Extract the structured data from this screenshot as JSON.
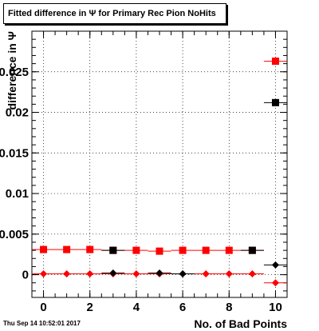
{
  "title": "Fitted difference in Ψ  for Primary Rec Pion NoHits",
  "timestamp": "Thu Sep 14 10:52:01 2017",
  "colors": {
    "red": "#ff0000",
    "black": "#000000"
  },
  "chart_data": {
    "type": "scatter",
    "xlabel": "No. of Bad Points",
    "ylabel": "difference in  Ψ",
    "xlim": [
      -0.5,
      10.5
    ],
    "ylim": [
      -0.0028,
      0.03
    ],
    "x_ticks": [
      "0",
      "2",
      "4",
      "6",
      "8",
      "10"
    ],
    "y_ticks": [
      "0",
      "0.005",
      "0.01",
      "0.015",
      "0.02",
      "0.025"
    ],
    "grid": true,
    "series": [
      {
        "marker": "square",
        "color": "#ff0000",
        "x": [
          0,
          1,
          2,
          3,
          4,
          5,
          6,
          7,
          8,
          9,
          10
        ],
        "y": [
          0.0031,
          0.0031,
          0.0031,
          0.003,
          0.003,
          0.0029,
          0.003,
          0.003,
          0.003,
          0.003,
          0.0263
        ]
      },
      {
        "marker": "square",
        "color": "#000000",
        "x": [
          3,
          9,
          10
        ],
        "y": [
          0.003,
          0.003,
          0.0212
        ]
      },
      {
        "marker": "diamond",
        "color": "#ff0000",
        "x": [
          0,
          1,
          2,
          3,
          4,
          5,
          6,
          7,
          8,
          9,
          10
        ],
        "y": [
          0.0001,
          0.0001,
          0.0001,
          0.0001,
          0.0001,
          0.0001,
          0.0001,
          0.0001,
          0.0001,
          0.0001,
          -0.001
        ]
      },
      {
        "marker": "diamond",
        "color": "#000000",
        "x": [
          3,
          5,
          6,
          10
        ],
        "y": [
          0.0002,
          0.0002,
          0.0001,
          0.0012
        ]
      }
    ]
  }
}
